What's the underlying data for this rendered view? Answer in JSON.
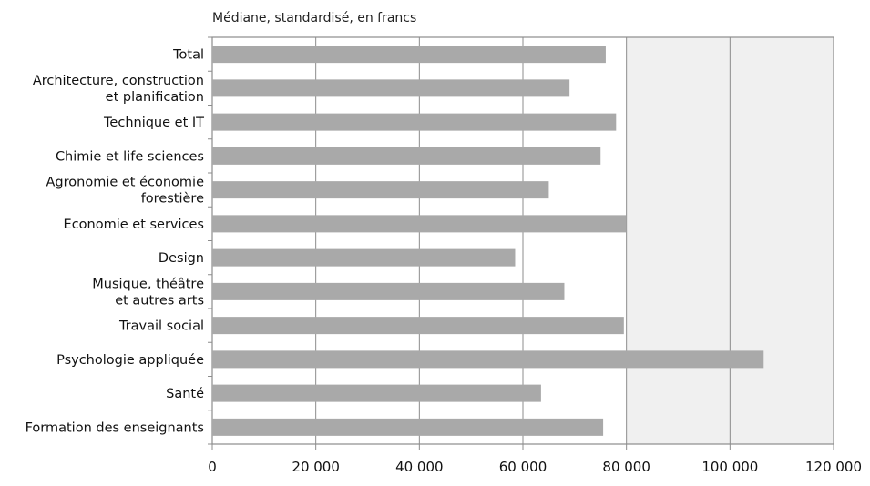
{
  "chart_data": {
    "type": "bar",
    "orientation": "horizontal",
    "subtitle": "Médiane, standardisé, en francs",
    "categories": [
      [
        "Total"
      ],
      [
        "Architecture, construction",
        "et planification"
      ],
      [
        "Technique et IT"
      ],
      [
        "Chimie et life sciences"
      ],
      [
        "Agronomie et économie",
        "forestière"
      ],
      [
        "Economie et services"
      ],
      [
        "Design"
      ],
      [
        "Musique, théâtre",
        "et autres arts"
      ],
      [
        "Travail social"
      ],
      [
        "Psychologie appliquée"
      ],
      [
        "Santé"
      ],
      [
        "Formation des enseignants"
      ]
    ],
    "values": [
      76000,
      69000,
      78000,
      75000,
      65000,
      80000,
      58500,
      68000,
      79500,
      106500,
      63500,
      75500
    ],
    "xlim": [
      0,
      120000
    ],
    "xticks": [
      0,
      20000,
      40000,
      60000,
      80000,
      100000,
      120000
    ],
    "xtick_labels": [
      "0",
      "20 000",
      "40 000",
      "60 000",
      "80 000",
      "100 000",
      "120 000"
    ],
    "grid": true,
    "colors": {
      "bar": "#a9a9a9",
      "plot_background": "#f0f0f0",
      "grid": "#8c8c8c",
      "frame": "#8c8c8c"
    }
  }
}
